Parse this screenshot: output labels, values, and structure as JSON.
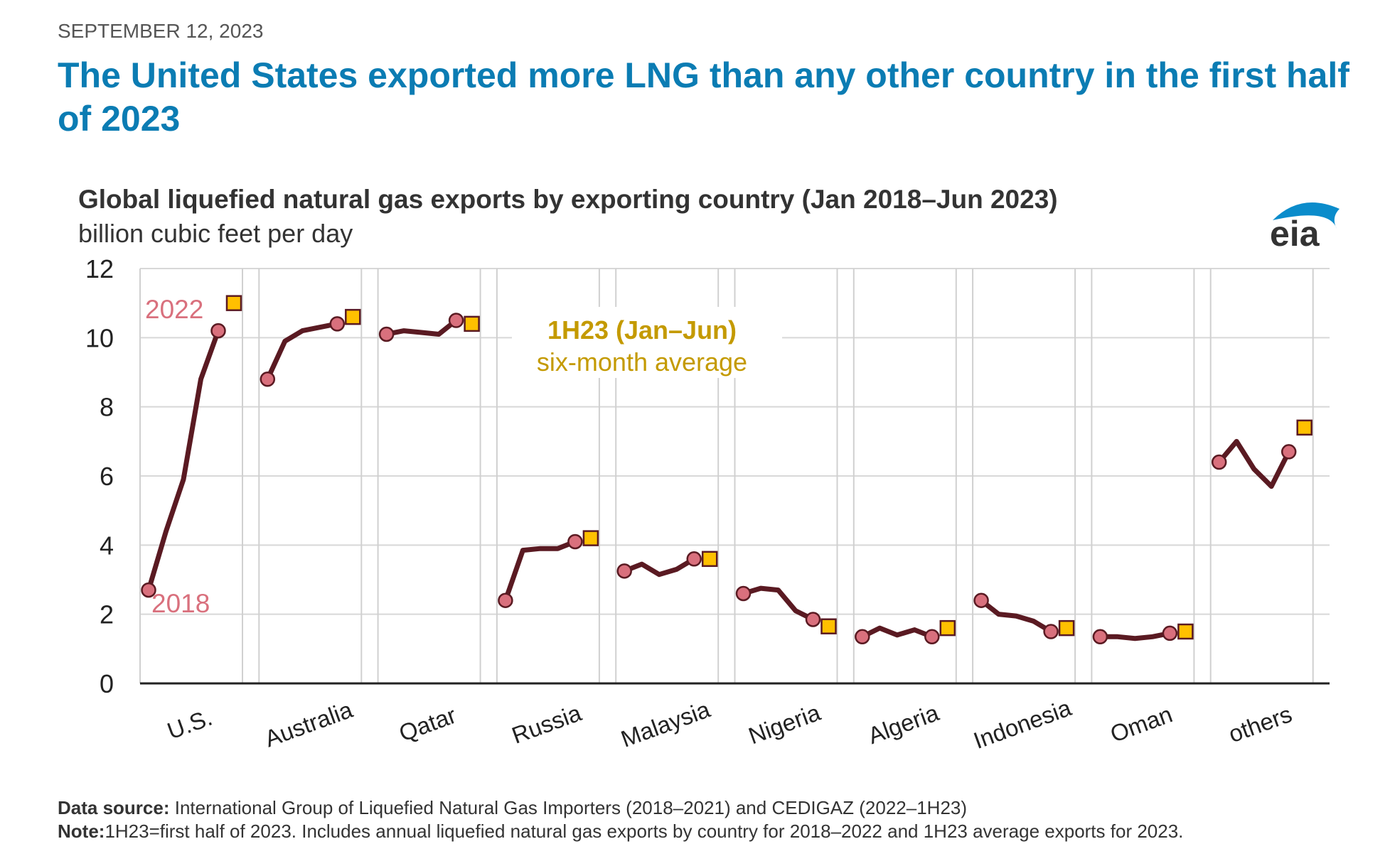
{
  "date": "SEPTEMBER 12, 2023",
  "headline": "The United States exported more LNG than any other country in the first half of 2023",
  "logo_text": "eia",
  "footer": {
    "source_label": "Data source:",
    "source_text": " International Group of Liquefied Natural Gas Importers (2018–2021) and CEDIGAZ (2022–1H23)",
    "note_label": "Note:",
    "note_text": "1H23=first half of 2023. Includes annual liquefied natural gas exports by country for 2018–2022 and 1H23 average exports for 2023."
  },
  "chart_data": {
    "type": "line",
    "title": "Global liquefied natural gas exports by exporting country (Jan 2018–Jun 2023)",
    "ylabel": "billion cubic feet per day",
    "ylim": [
      0,
      12
    ],
    "yticks": [
      "0",
      "2",
      "4",
      "6",
      "8",
      "10",
      "12"
    ],
    "grid": true,
    "x": [
      "2018",
      "2019",
      "2020",
      "2021",
      "2022"
    ],
    "annotations": {
      "start_year": "2018",
      "end_year": "2022",
      "box_line1": "1H23 (Jan–Jun)",
      "box_line2": "six-month average"
    },
    "series": [
      {
        "name": "U.S.",
        "values": [
          2.7,
          4.4,
          5.9,
          8.8,
          10.2
        ],
        "h1_2023": 11.0
      },
      {
        "name": "Australia",
        "values": [
          8.8,
          9.9,
          10.2,
          10.3,
          10.4
        ],
        "h1_2023": 10.6
      },
      {
        "name": "Qatar",
        "values": [
          10.1,
          10.2,
          10.15,
          10.1,
          10.5
        ],
        "h1_2023": 10.4
      },
      {
        "name": "Russia",
        "values": [
          2.4,
          3.85,
          3.9,
          3.9,
          4.1
        ],
        "h1_2023": 4.2
      },
      {
        "name": "Malaysia",
        "values": [
          3.25,
          3.45,
          3.15,
          3.3,
          3.6
        ],
        "h1_2023": 3.6
      },
      {
        "name": "Nigeria",
        "values": [
          2.6,
          2.75,
          2.7,
          2.1,
          1.85
        ],
        "h1_2023": 1.65
      },
      {
        "name": "Algeria",
        "values": [
          1.35,
          1.6,
          1.4,
          1.55,
          1.35
        ],
        "h1_2023": 1.6
      },
      {
        "name": "Indonesia",
        "values": [
          2.4,
          2.0,
          1.95,
          1.8,
          1.5
        ],
        "h1_2023": 1.6
      },
      {
        "name": "Oman",
        "values": [
          1.35,
          1.35,
          1.3,
          1.35,
          1.45
        ],
        "h1_2023": 1.5
      },
      {
        "name": "others",
        "values": [
          6.4,
          7.0,
          6.2,
          5.7,
          6.7
        ],
        "h1_2023": 7.4
      }
    ],
    "colors": {
      "line": "#5a1a22",
      "annual_marker": "#d9707d",
      "h1_marker": "#ffc000",
      "year_label": "#d9707d",
      "annotation": "#c49a00"
    }
  }
}
